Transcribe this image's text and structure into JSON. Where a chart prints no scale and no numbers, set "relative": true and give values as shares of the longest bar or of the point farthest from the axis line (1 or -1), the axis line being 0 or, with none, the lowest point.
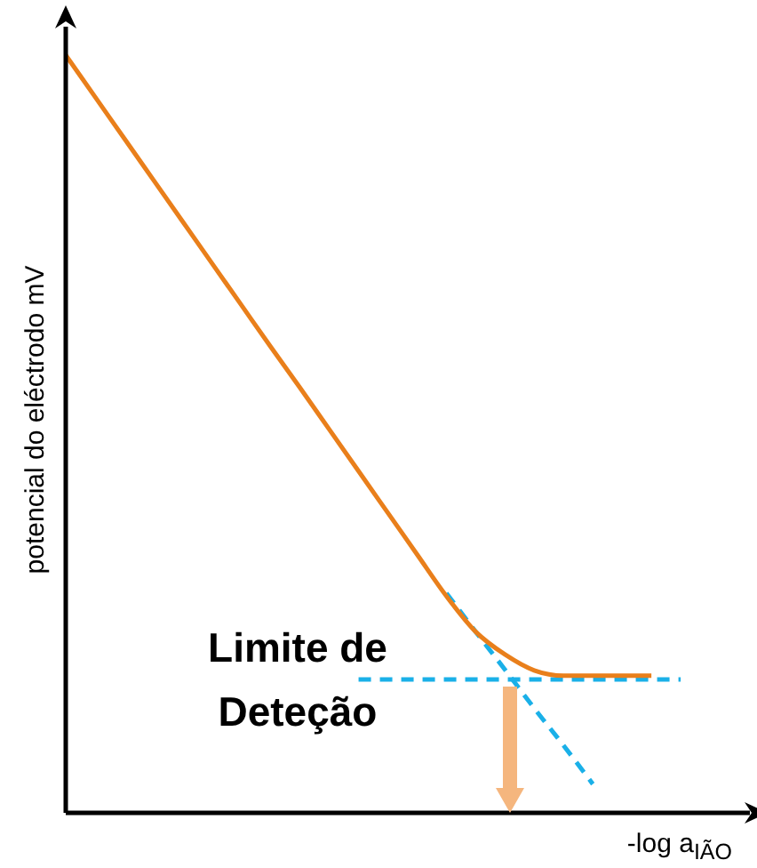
{
  "chart_data": {
    "type": "line",
    "relative": true,
    "xlabel": "-log a$_{IÃO}$",
    "ylabel": "potencial do eléctrodo  mV",
    "categories": [
      null,
      null,
      null,
      null,
      null,
      null,
      null,
      null,
      null,
      null,
      null,
      null,
      null,
      null,
      null,
      null,
      null,
      null,
      null,
      null,
      null,
      null,
      null,
      null
    ],
    "series": [
      {
        "color": "#e97f1b",
        "line_style": "solid",
        "values": [
          1,
          0.945,
          0.89,
          0.835,
          0.78,
          0.725,
          0.67,
          0.615,
          0.561,
          0.506,
          0.451,
          0.396,
          0.341,
          0.286,
          0.239,
          0.209,
          0.188,
          0.181,
          0.181,
          0.181,
          0.181,
          null,
          null,
          null
        ]
      },
      {
        "color": "#1ab0e8",
        "line_style": "dashed",
        "values": [
          null,
          null,
          null,
          null,
          null,
          null,
          null,
          null,
          null,
          null,
          0.176,
          0.176,
          0.176,
          0.176,
          0.176,
          0.176,
          0.176,
          0.176,
          0.176,
          0.176,
          0.176,
          0.176,
          null,
          null
        ]
      },
      {
        "color": "#1ab0e8",
        "line_style": "dashed",
        "values": [
          null,
          null,
          null,
          null,
          null,
          null,
          null,
          null,
          null,
          null,
          null,
          null,
          null,
          0.29,
          0.239,
          0.189,
          0.138,
          0.089,
          0.038,
          null,
          null,
          null,
          null,
          null
        ]
      }
    ],
    "annotations": [
      "Limite de Deteção"
    ],
    "marker": "none",
    "legend": false
  }
}
